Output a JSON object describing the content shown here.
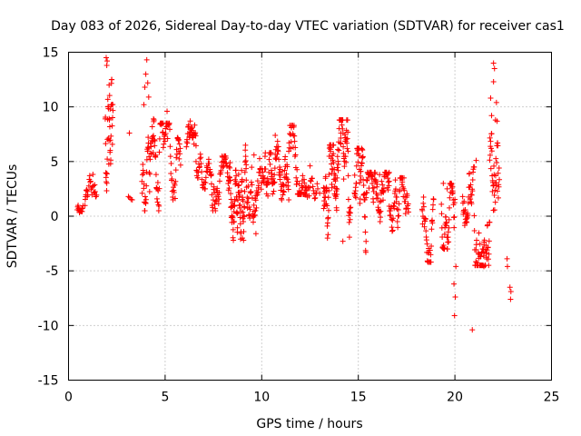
{
  "chart_data": {
    "type": "scatter",
    "title": "Day 083 of 2026, Sidereal Day-to-day VTEC variation (SDTVAR) for receiver cas1",
    "xlabel": "GPS time / hours",
    "ylabel": "SDTVAR / TECUs",
    "xlim": [
      0,
      25
    ],
    "ylim": [
      -15,
      15
    ],
    "xticks": [
      0,
      5,
      10,
      15,
      20,
      25
    ],
    "xtick_labels": [
      "0",
      "5",
      "10",
      "15",
      "20",
      "25"
    ],
    "yticks": [
      -15,
      -10,
      -5,
      0,
      5,
      10,
      15
    ],
    "ytick_labels": [
      "-15",
      "-10",
      "-5",
      "0",
      "5",
      "10",
      "15"
    ],
    "grid": true,
    "marker": "+",
    "color": "#ff0000",
    "series": [
      {
        "name": "SDTVAR",
        "segments": [
          {
            "t0": 0.45,
            "t1": 0.75,
            "min": 0.2,
            "max": 1.6,
            "n": 14
          },
          {
            "t0": 0.85,
            "t1": 1.0,
            "min": -0.3,
            "max": 2.4,
            "n": 10
          },
          {
            "t0": 1.05,
            "t1": 1.45,
            "min": 0.6,
            "max": 6.3,
            "n": 18
          },
          {
            "t0": 1.9,
            "t1": 2.3,
            "min": -0.2,
            "max": 12.5,
            "n": 40
          },
          {
            "t0": 3.1,
            "t1": 3.3,
            "min": 1.5,
            "max": 2.2,
            "n": 4
          },
          {
            "t0": 3.8,
            "t1": 4.7,
            "min": 0.5,
            "max": 8.8,
            "n": 60
          },
          {
            "t0": 4.7,
            "t1": 5.8,
            "min": 1.5,
            "max": 8.5,
            "n": 60
          },
          {
            "t0": 6.1,
            "t1": 6.6,
            "min": 3.5,
            "max": 8.7,
            "n": 30
          },
          {
            "t0": 6.6,
            "t1": 7.4,
            "min": 2.5,
            "max": 6.2,
            "n": 40
          },
          {
            "t0": 7.4,
            "t1": 8.3,
            "min": 0.5,
            "max": 5.5,
            "n": 50
          },
          {
            "t0": 8.3,
            "t1": 9.2,
            "min": -2.2,
            "max": 6.5,
            "n": 90
          },
          {
            "t0": 9.2,
            "t1": 10.5,
            "min": -1.6,
            "max": 5.8,
            "n": 80
          },
          {
            "t0": 10.5,
            "t1": 11.4,
            "min": 1.5,
            "max": 7.8,
            "n": 60
          },
          {
            "t0": 11.4,
            "t1": 12.3,
            "min": 2.0,
            "max": 8.3,
            "n": 60
          },
          {
            "t0": 12.3,
            "t1": 12.9,
            "min": 0.3,
            "max": 4.5,
            "n": 20
          },
          {
            "t0": 13.2,
            "t1": 13.9,
            "min": -2.0,
            "max": 6.5,
            "n": 70
          },
          {
            "t0": 13.9,
            "t1": 14.6,
            "min": -2.3,
            "max": 8.8,
            "n": 60
          },
          {
            "t0": 14.8,
            "t1": 15.4,
            "min": -3.3,
            "max": 6.2,
            "n": 50
          },
          {
            "t0": 15.4,
            "t1": 16.6,
            "min": -1.5,
            "max": 4.0,
            "n": 80
          },
          {
            "t0": 16.6,
            "t1": 17.6,
            "min": -1.8,
            "max": 3.5,
            "n": 60
          },
          {
            "t0": 18.3,
            "t1": 18.9,
            "min": -4.2,
            "max": 2.8,
            "n": 40
          },
          {
            "t0": 19.3,
            "t1": 20.0,
            "min": -3.0,
            "max": 3.0,
            "n": 50
          },
          {
            "t0": 20.4,
            "t1": 21.0,
            "min": -1.5,
            "max": 4.5,
            "n": 40
          },
          {
            "t0": 21.0,
            "t1": 21.8,
            "min": -4.5,
            "max": 6.5,
            "n": 60
          },
          {
            "t0": 21.8,
            "t1": 22.3,
            "min": -0.5,
            "max": 11.0,
            "n": 40
          }
        ],
        "extra_points": [
          [
            1.95,
            14.5
          ],
          [
            2.0,
            14.2
          ],
          [
            1.98,
            13.8
          ],
          [
            2.1,
            12.0
          ],
          [
            2.15,
            9.8
          ],
          [
            3.15,
            7.6
          ],
          [
            4.05,
            14.3
          ],
          [
            4.0,
            13.0
          ],
          [
            4.1,
            12.2
          ],
          [
            3.95,
            11.8
          ],
          [
            4.15,
            10.9
          ],
          [
            3.9,
            10.2
          ],
          [
            4.4,
            8.9
          ],
          [
            4.9,
            8.5
          ],
          [
            5.1,
            9.6
          ],
          [
            6.3,
            8.7
          ],
          [
            9.6,
            5.6
          ],
          [
            10.7,
            7.4
          ],
          [
            12.5,
            4.6
          ],
          [
            13.0,
            2.1
          ],
          [
            15.2,
            6.1
          ],
          [
            14.1,
            7.6
          ],
          [
            16.1,
            3.8
          ],
          [
            16.6,
            4.0
          ],
          [
            19.4,
            3.0
          ],
          [
            19.6,
            2.5
          ],
          [
            20.05,
            -4.6
          ],
          [
            19.95,
            -6.2
          ],
          [
            20.02,
            -7.4
          ],
          [
            19.98,
            -9.1
          ],
          [
            20.9,
            -10.4
          ],
          [
            21.1,
            5.1
          ],
          [
            22.0,
            14.0
          ],
          [
            22.05,
            13.5
          ],
          [
            22.0,
            12.3
          ],
          [
            21.85,
            10.8
          ],
          [
            22.15,
            10.4
          ],
          [
            21.9,
            9.2
          ],
          [
            22.1,
            8.8
          ],
          [
            22.2,
            2.3
          ],
          [
            22.7,
            -3.9
          ],
          [
            22.72,
            -4.6
          ],
          [
            22.85,
            -6.5
          ],
          [
            22.9,
            -6.9
          ],
          [
            22.88,
            -7.6
          ],
          [
            21.5,
            -4.6
          ],
          [
            14.2,
            -2.3
          ],
          [
            9.0,
            -2.0
          ],
          [
            9.7,
            -1.6
          ],
          [
            5.7,
            7.0
          ]
        ]
      }
    ]
  }
}
